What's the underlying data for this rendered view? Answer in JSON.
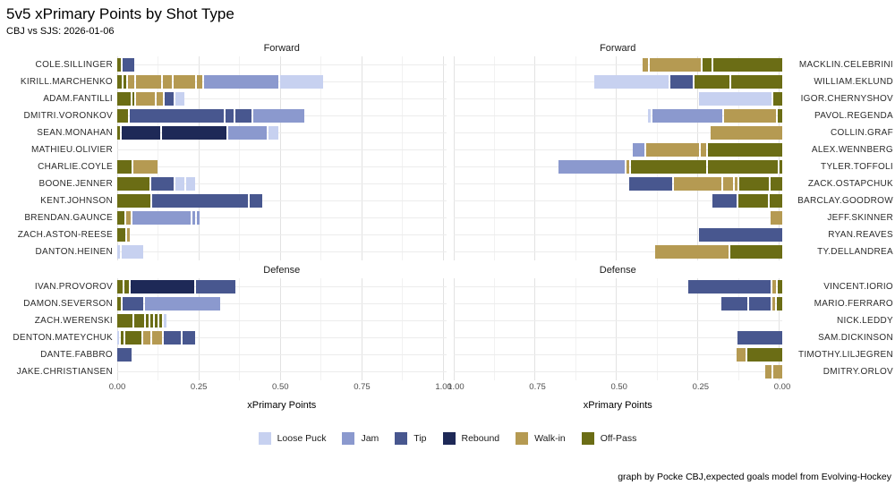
{
  "title": "5v5 xPrimary Points by Shot Type",
  "subtitle": "CBJ vs SJS: 2026-01-06",
  "caption": "graph by Pocke CBJ,expected goals model from Evolving-Hockey",
  "chart_data": {
    "type": "bar",
    "orientation": "horizontal-stacked-mirrored",
    "xlabel": "xPrimary Points",
    "xlim": [
      0,
      1.008
    ],
    "x_ticks": [
      {
        "value": 0.0,
        "label": "0.00"
      },
      {
        "value": 0.25,
        "label": "0.25"
      },
      {
        "value": 0.5,
        "label": "0.50"
      },
      {
        "value": 0.75,
        "label": "0.75"
      },
      {
        "value": 1.0,
        "label": "1.00"
      }
    ],
    "grid": "on",
    "legend_position": "bottom",
    "palette": {
      "loose": "#c7d1f0",
      "jam": "#8b99ce",
      "tip": "#48578f",
      "rebound": "#1e2957",
      "walkin": "#b59a52",
      "offpass": "#6b6d15"
    },
    "legend": [
      {
        "key": "loose",
        "label": "Loose Puck"
      },
      {
        "key": "jam",
        "label": "Jam"
      },
      {
        "key": "tip",
        "label": "Tip"
      },
      {
        "key": "rebound",
        "label": "Rebound"
      },
      {
        "key": "walkin",
        "label": "Walk-in"
      },
      {
        "key": "offpass",
        "label": "Off-Pass"
      }
    ],
    "groups": [
      {
        "label": "Forward",
        "left": [
          {
            "name": "COLE.SILLINGER",
            "segments": [
              [
                "offpass",
                0.01
              ],
              [
                "tip",
                0.038
              ]
            ]
          },
          {
            "name": "KIRILL.MARCHENKO",
            "segments": [
              [
                "offpass",
                0.013
              ],
              [
                "offpass",
                0.008
              ],
              [
                "walkin",
                0.019
              ],
              [
                "walkin",
                0.078
              ],
              [
                "walkin",
                0.027
              ],
              [
                "walkin",
                0.065
              ],
              [
                "walkin",
                0.019
              ],
              [
                "jam",
                0.226
              ],
              [
                "loose",
                0.132
              ]
            ]
          },
          {
            "name": "ADAM.FANTILLI",
            "segments": [
              [
                "offpass",
                0.04
              ],
              [
                "offpass",
                0.006
              ],
              [
                "walkin",
                0.058
              ],
              [
                "walkin",
                0.019
              ],
              [
                "tip",
                0.027
              ],
              [
                "loose",
                0.027
              ]
            ]
          },
          {
            "name": "DMITRI.VORONKOV",
            "segments": [
              [
                "offpass",
                0.034
              ],
              [
                "tip",
                0.287
              ],
              [
                "tip",
                0.024
              ],
              [
                "tip",
                0.051
              ],
              [
                "jam",
                0.156
              ]
            ]
          },
          {
            "name": "SEAN.MONAHAN",
            "segments": [
              [
                "offpass",
                0.008
              ],
              [
                "rebound",
                0.117
              ],
              [
                "rebound",
                0.2
              ],
              [
                "jam",
                0.118
              ],
              [
                "loose",
                0.028
              ]
            ]
          },
          {
            "name": "MATHIEU.OLIVIER",
            "segments": []
          },
          {
            "name": "CHARLIE.COYLE",
            "segments": [
              [
                "offpass",
                0.043
              ],
              [
                "walkin",
                0.075
              ]
            ]
          },
          {
            "name": "BOONE.JENNER",
            "segments": [
              [
                "offpass",
                0.1
              ],
              [
                "tip",
                0.067
              ],
              [
                "loose",
                0.027
              ],
              [
                "loose",
                0.029
              ]
            ]
          },
          {
            "name": "KENT.JOHNSON",
            "segments": [
              [
                "offpass",
                0.102
              ],
              [
                "tip",
                0.292
              ],
              [
                "tip",
                0.039
              ]
            ]
          },
          {
            "name": "BRENDAN.GAUNCE",
            "segments": [
              [
                "offpass",
                0.021
              ],
              [
                "walkin",
                0.016
              ],
              [
                "jam",
                0.177
              ],
              [
                "jam",
                0.008
              ],
              [
                "jam",
                0.008
              ]
            ]
          },
          {
            "name": "ZACH.ASTON-REESE",
            "segments": [
              [
                "offpass",
                0.024
              ],
              [
                "walkin",
                0.008
              ]
            ]
          },
          {
            "name": "DANTON.HEINEN",
            "segments": [
              [
                "loose",
                0.008
              ],
              [
                "loose",
                0.067
              ]
            ]
          }
        ],
        "right": [
          {
            "name": "MACKLIN.CELEBRINI",
            "segments": [
              [
                "offpass",
                0.21
              ],
              [
                "offpass",
                0.03
              ],
              [
                "walkin",
                0.156
              ],
              [
                "walkin",
                0.016
              ]
            ]
          },
          {
            "name": "WILLIAM.EKLUND",
            "segments": [
              [
                "offpass",
                0.156
              ],
              [
                "offpass",
                0.108
              ],
              [
                "tip",
                0.067
              ],
              [
                "loose",
                0.228
              ]
            ]
          },
          {
            "name": "IGOR.CHERNYSHOV",
            "segments": [
              [
                "offpass",
                0.027
              ],
              [
                "loose",
                0.223
              ]
            ]
          },
          {
            "name": "PAVOL.REGENDA",
            "segments": [
              [
                "offpass",
                0.013
              ],
              [
                "walkin",
                0.161
              ],
              [
                "jam",
                0.212
              ],
              [
                "loose",
                0.008
              ]
            ]
          },
          {
            "name": "COLLIN.GRAF",
            "segments": [
              [
                "walkin",
                0.22
              ]
            ]
          },
          {
            "name": "ALEX.WENNBERG",
            "segments": [
              [
                "offpass",
                0.228
              ],
              [
                "walkin",
                0.016
              ],
              [
                "walkin",
                0.161
              ],
              [
                "jam",
                0.038
              ]
            ]
          },
          {
            "name": "TYLER.TOFFOLI",
            "segments": [
              [
                "offpass",
                0.008
              ],
              [
                "offpass",
                0.215
              ],
              [
                "offpass",
                0.231
              ],
              [
                "walkin",
                0.008
              ],
              [
                "jam",
                0.202
              ]
            ]
          },
          {
            "name": "ZACK.OSTAPCHUK",
            "segments": [
              [
                "offpass",
                0.035
              ],
              [
                "offpass",
                0.091
              ],
              [
                "walkin",
                0.008
              ],
              [
                "walkin",
                0.032
              ],
              [
                "walkin",
                0.143
              ],
              [
                "tip",
                0.134
              ]
            ]
          },
          {
            "name": "BARCLAY.GOODROW",
            "segments": [
              [
                "offpass",
                0.038
              ],
              [
                "offpass",
                0.091
              ],
              [
                "tip",
                0.073
              ]
            ]
          },
          {
            "name": "JEFF.SKINNER",
            "segments": [
              [
                "walkin",
                0.035
              ]
            ]
          },
          {
            "name": "RYAN.REAVES",
            "segments": [
              [
                "tip",
                0.255
              ]
            ]
          },
          {
            "name": "TY.DELLANDREA",
            "segments": [
              [
                "offpass",
                0.159
              ],
              [
                "walkin",
                0.226
              ]
            ]
          }
        ]
      },
      {
        "label": "Defense",
        "left": [
          {
            "name": "IVAN.PROVOROV",
            "segments": [
              [
                "offpass",
                0.016
              ],
              [
                "offpass",
                0.013
              ],
              [
                "rebound",
                0.196
              ],
              [
                "tip",
                0.121
              ]
            ]
          },
          {
            "name": "DAMON.SEVERSON",
            "segments": [
              [
                "offpass",
                0.011
              ],
              [
                "tip",
                0.062
              ],
              [
                "jam",
                0.231
              ]
            ]
          },
          {
            "name": "ZACH.WERENSKI",
            "segments": [
              [
                "offpass",
                0.046
              ],
              [
                "offpass",
                0.032
              ],
              [
                "offpass",
                0.008
              ],
              [
                "offpass",
                0.008
              ],
              [
                "offpass",
                0.008
              ],
              [
                "offpass",
                0.008
              ],
              [
                "loose",
                0.008
              ]
            ]
          },
          {
            "name": "DENTON.MATEYCHUK",
            "segments": [
              [
                "loose",
                0.005
              ],
              [
                "offpass",
                0.008
              ],
              [
                "offpass",
                0.05
              ],
              [
                "walkin",
                0.022
              ],
              [
                "walkin",
                0.03
              ],
              [
                "tip",
                0.053
              ],
              [
                "tip",
                0.038
              ]
            ]
          },
          {
            "name": "DANTE.FABBRO",
            "segments": [
              [
                "tip",
                0.045
              ]
            ]
          },
          {
            "name": "JAKE.CHRISTIANSEN",
            "segments": []
          }
        ],
        "right": [
          {
            "name": "VINCENT.IORIO",
            "segments": [
              [
                "offpass",
                0.013
              ],
              [
                "walkin",
                0.011
              ],
              [
                "tip",
                0.253
              ]
            ]
          },
          {
            "name": "MARIO.FERRARO",
            "segments": [
              [
                "offpass",
                0.016
              ],
              [
                "walkin",
                0.008
              ],
              [
                "tip",
                0.067
              ],
              [
                "tip",
                0.078
              ]
            ]
          },
          {
            "name": "NICK.LEDDY",
            "segments": []
          },
          {
            "name": "SAM.DICKINSON",
            "segments": [
              [
                "tip",
                0.137
              ]
            ]
          },
          {
            "name": "TIMOTHY.LILJEGREN",
            "segments": [
              [
                "offpass",
                0.108
              ],
              [
                "walkin",
                0.027
              ]
            ]
          },
          {
            "name": "DMITRY.ORLOV",
            "segments": [
              [
                "walkin",
                0.027
              ],
              [
                "walkin",
                0.019
              ]
            ]
          }
        ]
      }
    ]
  }
}
